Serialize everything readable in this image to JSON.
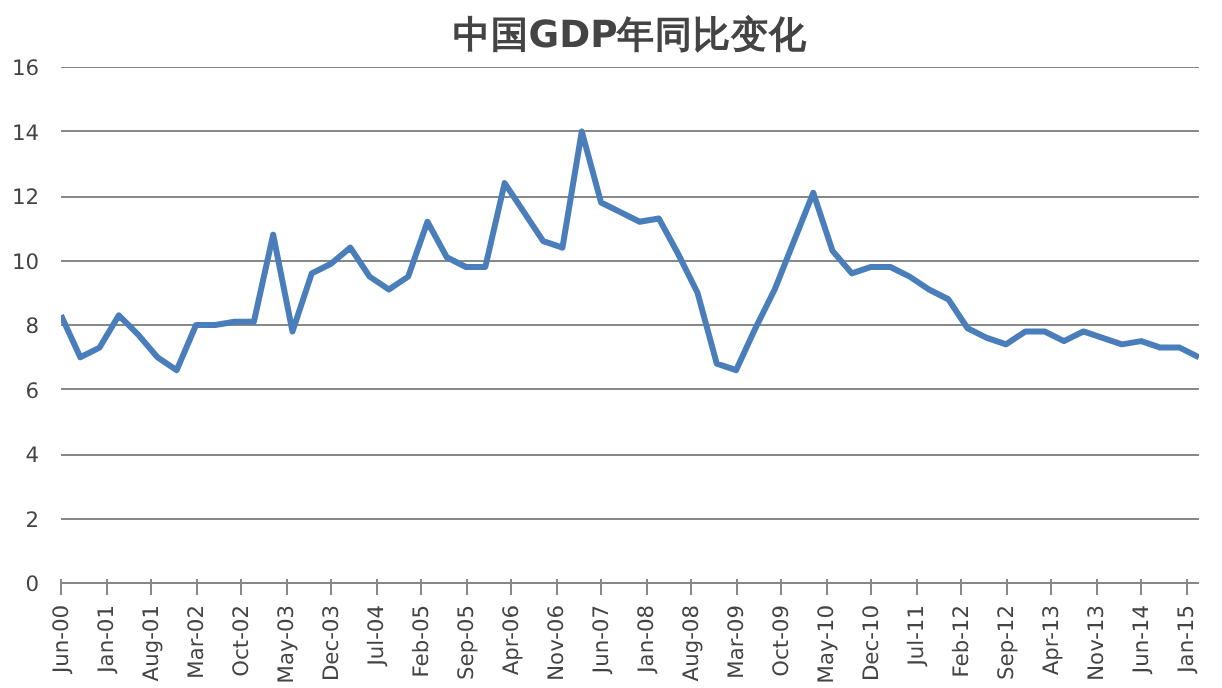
{
  "chart_data": {
    "type": "line",
    "title": "中国GDP年同比变化",
    "x": [
      "2000-06",
      "2000-09",
      "2000-12",
      "2001-03",
      "2001-06",
      "2001-09",
      "2001-12",
      "2002-03",
      "2002-06",
      "2002-09",
      "2002-12",
      "2003-03",
      "2003-06",
      "2003-09",
      "2003-12",
      "2004-03",
      "2004-06",
      "2004-09",
      "2004-12",
      "2005-03",
      "2005-06",
      "2005-09",
      "2005-12",
      "2006-03",
      "2006-06",
      "2006-09",
      "2006-12",
      "2007-03",
      "2007-06",
      "2007-09",
      "2007-12",
      "2008-03",
      "2008-06",
      "2008-09",
      "2008-12",
      "2009-03",
      "2009-06",
      "2009-09",
      "2009-12",
      "2010-03",
      "2010-06",
      "2010-09",
      "2010-12",
      "2011-03",
      "2011-06",
      "2011-09",
      "2011-12",
      "2012-03",
      "2012-06",
      "2012-09",
      "2012-12",
      "2013-03",
      "2013-06",
      "2013-09",
      "2013-12",
      "2014-03",
      "2014-06",
      "2014-09",
      "2014-12",
      "2015-03"
    ],
    "series": [
      {
        "color": "#4a7ebb",
        "values": [
          8.3,
          7.0,
          7.3,
          8.3,
          7.7,
          7.0,
          6.6,
          8.0,
          8.0,
          8.1,
          8.1,
          10.8,
          7.8,
          9.6,
          9.9,
          10.4,
          9.5,
          9.1,
          9.5,
          11.2,
          10.1,
          9.8,
          9.8,
          12.4,
          11.5,
          10.6,
          10.4,
          14.0,
          11.8,
          11.5,
          11.2,
          11.3,
          10.2,
          9.0,
          6.8,
          6.6,
          7.9,
          9.1,
          10.6,
          12.1,
          10.3,
          9.6,
          9.8,
          9.8,
          9.5,
          9.1,
          8.8,
          7.9,
          7.6,
          7.4,
          7.8,
          7.8,
          7.5,
          7.8,
          7.6,
          7.4,
          7.5,
          7.3,
          7.3,
          7.0
        ]
      }
    ],
    "xlim": [
      "2000-06",
      "2015-03"
    ],
    "xticks": [
      {
        "value": "2000-06",
        "label": "Jun-00"
      },
      {
        "value": "2001-01",
        "label": "Jan-01"
      },
      {
        "value": "2001-08",
        "label": "Aug-01"
      },
      {
        "value": "2002-03",
        "label": "Mar-02"
      },
      {
        "value": "2002-10",
        "label": "Oct-02"
      },
      {
        "value": "2003-05",
        "label": "May-03"
      },
      {
        "value": "2003-12",
        "label": "Dec-03"
      },
      {
        "value": "2004-07",
        "label": "Jul-04"
      },
      {
        "value": "2005-02",
        "label": "Feb-05"
      },
      {
        "value": "2005-09",
        "label": "Sep-05"
      },
      {
        "value": "2006-04",
        "label": "Apr-06"
      },
      {
        "value": "2006-11",
        "label": "Nov-06"
      },
      {
        "value": "2007-06",
        "label": "Jun-07"
      },
      {
        "value": "2008-01",
        "label": "Jan-08"
      },
      {
        "value": "2008-08",
        "label": "Aug-08"
      },
      {
        "value": "2009-03",
        "label": "Mar-09"
      },
      {
        "value": "2009-10",
        "label": "Oct-09"
      },
      {
        "value": "2010-05",
        "label": "May-10"
      },
      {
        "value": "2010-12",
        "label": "Dec-10"
      },
      {
        "value": "2011-07",
        "label": "Jul-11"
      },
      {
        "value": "2012-02",
        "label": "Feb-12"
      },
      {
        "value": "2012-09",
        "label": "Sep-12"
      },
      {
        "value": "2013-04",
        "label": "Apr-13"
      },
      {
        "value": "2013-11",
        "label": "Nov-13"
      },
      {
        "value": "2014-06",
        "label": "Jun-14"
      },
      {
        "value": "2015-01",
        "label": "Jan-15"
      }
    ],
    "ylim": [
      0,
      16
    ],
    "yticks": [
      0,
      2,
      4,
      6,
      8,
      10,
      12,
      14,
      16
    ],
    "grid": "y",
    "marker": "none",
    "line_style": "solid"
  }
}
